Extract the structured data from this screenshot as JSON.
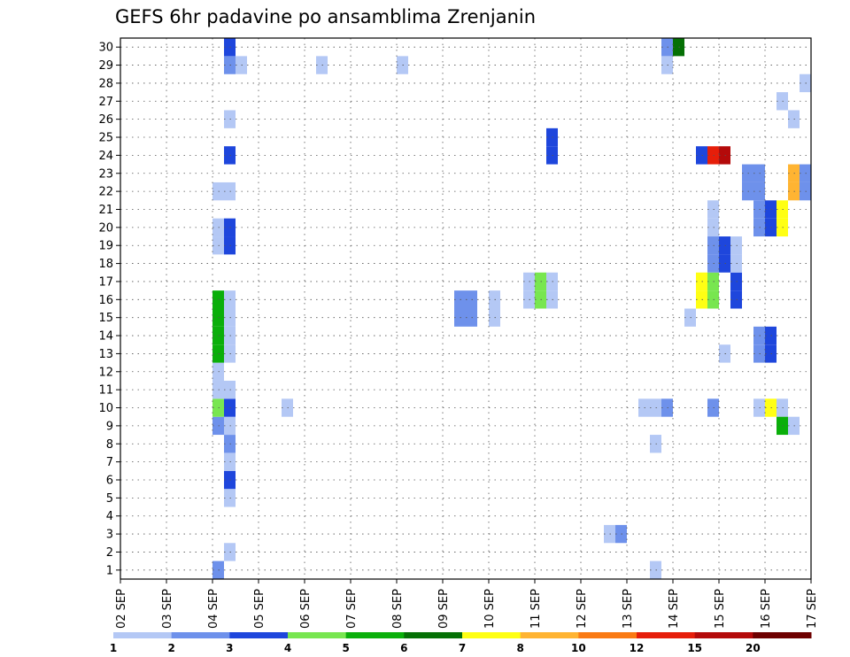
{
  "chart_data": {
    "type": "heatmap",
    "title": "GEFS 6hr padavine po ansamblima Zrenjanin",
    "x_tick_labels": [
      "02 SEP",
      "03 SEP",
      "04 SEP",
      "05 SEP",
      "06 SEP",
      "07 SEP",
      "08 SEP",
      "09 SEP",
      "10 SEP",
      "11 SEP",
      "12 SEP",
      "13 SEP",
      "14 SEP",
      "15 SEP",
      "16 SEP",
      "17 SEP"
    ],
    "y_tick_labels": [
      "1",
      "2",
      "3",
      "4",
      "5",
      "6",
      "7",
      "8",
      "9",
      "10",
      "11",
      "12",
      "13",
      "14",
      "15",
      "16",
      "17",
      "18",
      "19",
      "20",
      "21",
      "22",
      "23",
      "24",
      "25",
      "26",
      "27",
      "28",
      "29",
      "30"
    ],
    "x_range": [
      0,
      60
    ],
    "y_range": [
      0.5,
      30.5
    ],
    "grid": true,
    "legend": {
      "placement": "bottom",
      "colors": [
        "#b4c8f5",
        "#6e91eb",
        "#1e46dc",
        "#78e650",
        "#0aaf0a",
        "#057005",
        "#ffff14",
        "#ffb432",
        "#fa7a14",
        "#e61e0a",
        "#b40a0a",
        "#6e0000"
      ],
      "tick_labels": [
        "1",
        "2",
        "3",
        "4",
        "5",
        "6",
        "7",
        "8",
        "10",
        "12",
        "15",
        "20"
      ]
    },
    "cells": [
      {
        "x": 8,
        "y": 1,
        "c": 2
      },
      {
        "x": 9,
        "y": 2,
        "c": 1
      },
      {
        "x": 9,
        "y": 5,
        "c": 1
      },
      {
        "x": 9,
        "y": 6,
        "c": 3
      },
      {
        "x": 9,
        "y": 7,
        "c": 1
      },
      {
        "x": 9,
        "y": 8,
        "c": 2
      },
      {
        "x": 8,
        "y": 9,
        "c": 2
      },
      {
        "x": 9,
        "y": 9,
        "c": 1
      },
      {
        "x": 8,
        "y": 10,
        "c": 4
      },
      {
        "x": 9,
        "y": 10,
        "c": 3
      },
      {
        "x": 8,
        "y": 11,
        "c": 1
      },
      {
        "x": 9,
        "y": 11,
        "c": 1
      },
      {
        "x": 8,
        "y": 12,
        "c": 1
      },
      {
        "x": 8,
        "y": 13,
        "c": 5
      },
      {
        "x": 9,
        "y": 13,
        "c": 1
      },
      {
        "x": 8,
        "y": 14,
        "c": 5
      },
      {
        "x": 9,
        "y": 14,
        "c": 1
      },
      {
        "x": 8,
        "y": 16,
        "c": 5
      },
      {
        "x": 9,
        "y": 16,
        "c": 1
      },
      {
        "x": 8,
        "y": 15,
        "c": 5
      },
      {
        "x": 9,
        "y": 15,
        "c": 1
      },
      {
        "x": 8,
        "y": 19,
        "c": 1
      },
      {
        "x": 9,
        "y": 19,
        "c": 3
      },
      {
        "x": 8,
        "y": 20,
        "c": 1
      },
      {
        "x": 9,
        "y": 20,
        "c": 3
      },
      {
        "x": 8,
        "y": 22,
        "c": 1
      },
      {
        "x": 9,
        "y": 22,
        "c": 1
      },
      {
        "x": 9,
        "y": 24,
        "c": 3
      },
      {
        "x": 9,
        "y": 26,
        "c": 1
      },
      {
        "x": 9,
        "y": 29,
        "c": 2
      },
      {
        "x": 10,
        "y": 29,
        "c": 1
      },
      {
        "x": 9,
        "y": 30,
        "c": 3
      },
      {
        "x": 14,
        "y": 10,
        "c": 1
      },
      {
        "x": 17,
        "y": 29,
        "c": 1
      },
      {
        "x": 24,
        "y": 29,
        "c": 1
      },
      {
        "x": 29,
        "y": 15,
        "c": 2
      },
      {
        "x": 30,
        "y": 15,
        "c": 2
      },
      {
        "x": 29,
        "y": 16,
        "c": 2
      },
      {
        "x": 30,
        "y": 16,
        "c": 2
      },
      {
        "x": 32,
        "y": 15,
        "c": 1
      },
      {
        "x": 32,
        "y": 16,
        "c": 1
      },
      {
        "x": 35,
        "y": 16,
        "c": 1
      },
      {
        "x": 35,
        "y": 17,
        "c": 1
      },
      {
        "x": 36,
        "y": 16,
        "c": 4
      },
      {
        "x": 36,
        "y": 17,
        "c": 4
      },
      {
        "x": 37,
        "y": 16,
        "c": 1
      },
      {
        "x": 37,
        "y": 17,
        "c": 1
      },
      {
        "x": 37,
        "y": 24,
        "c": 3
      },
      {
        "x": 37,
        "y": 25,
        "c": 3
      },
      {
        "x": 42,
        "y": 3,
        "c": 1
      },
      {
        "x": 43,
        "y": 3,
        "c": 2
      },
      {
        "x": 46,
        "y": 1,
        "c": 1
      },
      {
        "x": 46,
        "y": 8,
        "c": 1
      },
      {
        "x": 45,
        "y": 10,
        "c": 1
      },
      {
        "x": 46,
        "y": 10,
        "c": 1
      },
      {
        "x": 47,
        "y": 10,
        "c": 2
      },
      {
        "x": 47,
        "y": 29,
        "c": 1
      },
      {
        "x": 47,
        "y": 30,
        "c": 2
      },
      {
        "x": 48,
        "y": 30,
        "c": 6
      },
      {
        "x": 49,
        "y": 15,
        "c": 1
      },
      {
        "x": 50,
        "y": 16,
        "c": 7
      },
      {
        "x": 50,
        "y": 17,
        "c": 7
      },
      {
        "x": 51,
        "y": 16,
        "c": 4
      },
      {
        "x": 51,
        "y": 17,
        "c": 4
      },
      {
        "x": 53,
        "y": 16,
        "c": 3
      },
      {
        "x": 53,
        "y": 17,
        "c": 3
      },
      {
        "x": 51,
        "y": 10,
        "c": 2
      },
      {
        "x": 52,
        "y": 13,
        "c": 1
      },
      {
        "x": 51,
        "y": 20,
        "c": 1
      },
      {
        "x": 51,
        "y": 21,
        "c": 1
      },
      {
        "x": 51,
        "y": 18,
        "c": 2
      },
      {
        "x": 51,
        "y": 19,
        "c": 2
      },
      {
        "x": 52,
        "y": 18,
        "c": 3
      },
      {
        "x": 52,
        "y": 19,
        "c": 3
      },
      {
        "x": 53,
        "y": 18,
        "c": 1
      },
      {
        "x": 53,
        "y": 19,
        "c": 1
      },
      {
        "x": 50,
        "y": 24,
        "c": 3
      },
      {
        "x": 51,
        "y": 24,
        "c": 10
      },
      {
        "x": 52,
        "y": 24,
        "c": 11
      },
      {
        "x": 54,
        "y": 23,
        "c": 2
      },
      {
        "x": 55,
        "y": 23,
        "c": 2
      },
      {
        "x": 54,
        "y": 22,
        "c": 2
      },
      {
        "x": 55,
        "y": 22,
        "c": 2
      },
      {
        "x": 55,
        "y": 10,
        "c": 1
      },
      {
        "x": 56,
        "y": 10,
        "c": 7
      },
      {
        "x": 57,
        "y": 10,
        "c": 1
      },
      {
        "x": 57,
        "y": 9,
        "c": 5
      },
      {
        "x": 58,
        "y": 9,
        "c": 1
      },
      {
        "x": 55,
        "y": 13,
        "c": 2
      },
      {
        "x": 56,
        "y": 13,
        "c": 3
      },
      {
        "x": 55,
        "y": 14,
        "c": 2
      },
      {
        "x": 56,
        "y": 14,
        "c": 3
      },
      {
        "x": 55,
        "y": 20,
        "c": 2
      },
      {
        "x": 56,
        "y": 20,
        "c": 3
      },
      {
        "x": 57,
        "y": 20,
        "c": 7
      },
      {
        "x": 55,
        "y": 21,
        "c": 2
      },
      {
        "x": 56,
        "y": 21,
        "c": 3
      },
      {
        "x": 57,
        "y": 21,
        "c": 7
      },
      {
        "x": 58,
        "y": 22,
        "c": 8
      },
      {
        "x": 59,
        "y": 22,
        "c": 2
      },
      {
        "x": 58,
        "y": 23,
        "c": 8
      },
      {
        "x": 59,
        "y": 23,
        "c": 2
      },
      {
        "x": 57,
        "y": 27,
        "c": 1
      },
      {
        "x": 58,
        "y": 26,
        "c": 1
      },
      {
        "x": 59,
        "y": 28,
        "c": 1
      }
    ]
  }
}
